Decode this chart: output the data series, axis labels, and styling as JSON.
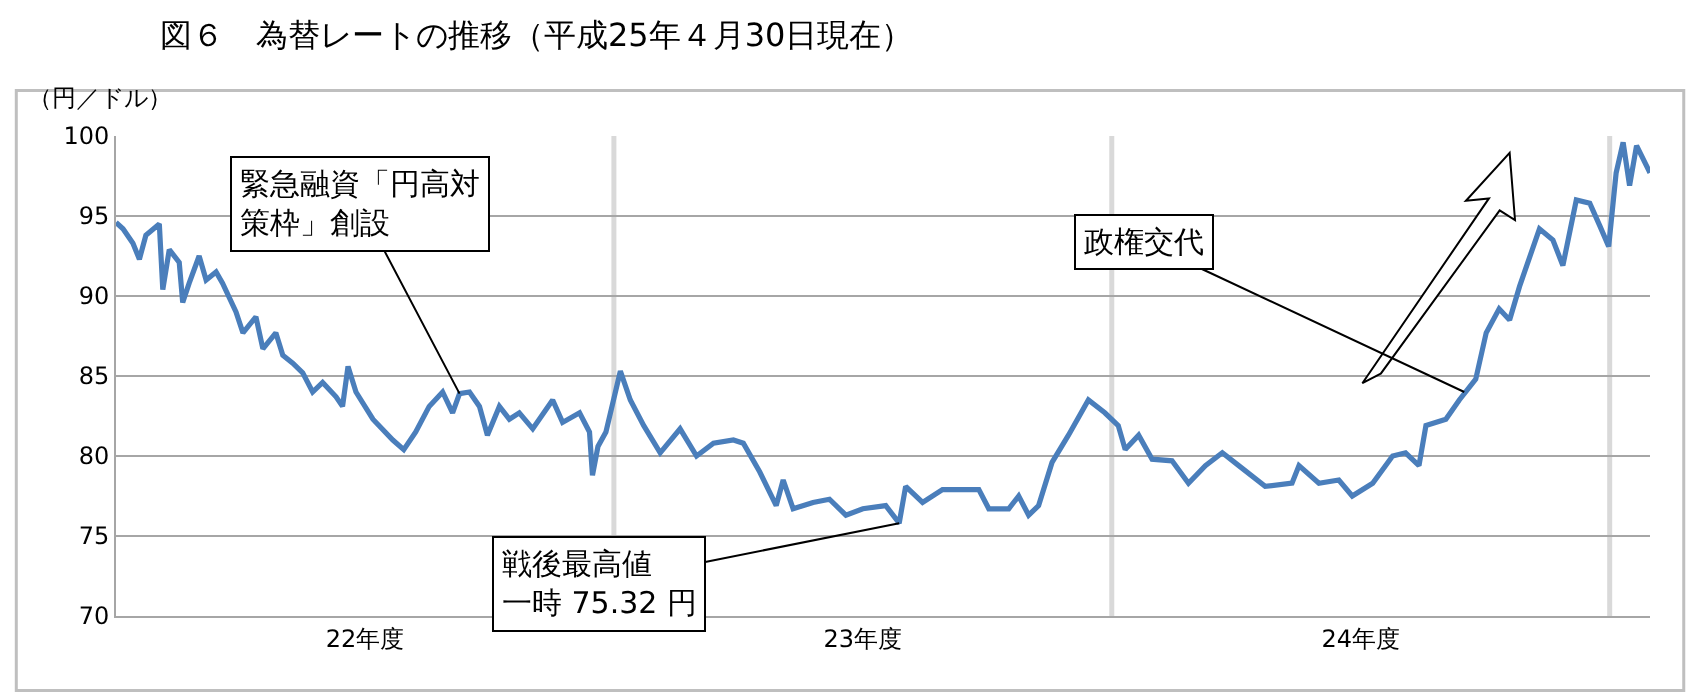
{
  "chart_data": {
    "type": "line",
    "title": "図６　為替レートの推移（平成25年４月30日現在）",
    "ylabel": "（円／ドル）",
    "x": [
      22.0,
      22.014,
      22.034,
      22.047,
      22.06,
      22.087,
      22.094,
      22.107,
      22.127,
      22.134,
      22.147,
      22.167,
      22.181,
      22.201,
      22.214,
      22.241,
      22.255,
      22.281,
      22.295,
      22.321,
      22.335,
      22.355,
      22.375,
      22.395,
      22.415,
      22.442,
      22.455,
      22.466,
      22.482,
      22.516,
      22.556,
      22.578,
      22.602,
      22.629,
      22.656,
      22.676,
      22.69,
      22.71,
      22.73,
      22.746,
      22.77,
      22.79,
      22.81,
      22.837,
      22.877,
      22.897,
      22.931,
      22.951,
      22.957,
      22.968,
      22.984,
      23.013,
      23.033,
      23.06,
      23.093,
      23.133,
      23.166,
      23.2,
      23.24,
      23.26,
      23.293,
      23.326,
      23.34,
      23.36,
      23.4,
      23.433,
      23.466,
      23.5,
      23.546,
      23.573,
      23.586,
      23.62,
      23.66,
      23.7,
      23.733,
      23.753,
      23.793,
      23.813,
      23.833,
      23.853,
      23.88,
      23.913,
      23.953,
      23.986,
      24.013,
      24.027,
      24.054,
      24.081,
      24.121,
      24.154,
      24.188,
      24.222,
      24.255,
      24.308,
      24.362,
      24.376,
      24.416,
      24.456,
      24.483,
      24.524,
      24.564,
      24.59,
      24.617,
      24.631,
      24.671,
      24.698,
      24.731,
      24.752,
      24.778,
      24.799,
      24.819,
      24.859,
      24.886,
      24.906,
      24.933,
      24.96,
      24.98,
      24.998,
      25.013,
      25.027,
      25.04,
      25.054,
      25.081
    ],
    "values": [
      94.6,
      94.2,
      93.3,
      92.3,
      93.8,
      94.5,
      90.4,
      92.9,
      92.1,
      89.6,
      90.8,
      92.5,
      91.0,
      91.5,
      90.8,
      89.0,
      87.7,
      88.7,
      86.7,
      87.7,
      86.3,
      85.8,
      85.2,
      84.0,
      84.6,
      83.7,
      83.1,
      85.6,
      84.0,
      82.3,
      81.0,
      80.4,
      81.5,
      83.1,
      84.0,
      82.7,
      83.9,
      84.0,
      83.1,
      81.3,
      83.1,
      82.3,
      82.7,
      81.7,
      83.5,
      82.1,
      82.7,
      81.5,
      78.8,
      80.6,
      81.5,
      85.3,
      83.5,
      81.9,
      80.2,
      81.7,
      80.0,
      80.8,
      81.0,
      80.8,
      79.0,
      76.9,
      78.5,
      76.7,
      77.1,
      77.3,
      76.3,
      76.7,
      76.9,
      75.8,
      78.1,
      77.1,
      77.9,
      77.9,
      77.9,
      76.7,
      76.7,
      77.5,
      76.3,
      76.9,
      79.6,
      81.3,
      83.5,
      82.7,
      81.9,
      80.4,
      81.3,
      79.8,
      79.7,
      78.3,
      79.4,
      80.2,
      79.4,
      78.1,
      78.3,
      79.4,
      78.3,
      78.5,
      77.5,
      78.3,
      80.0,
      80.2,
      79.4,
      81.9,
      82.3,
      83.5,
      84.8,
      87.7,
      89.2,
      88.5,
      90.6,
      94.2,
      93.5,
      91.9,
      96.0,
      95.8,
      94.4,
      93.1,
      97.7,
      99.6,
      96.9,
      99.4,
      97.7
    ],
    "color": "#4a7ebb",
    "xlim": [
      22,
      25.081
    ],
    "xticks": [
      {
        "value": 22.5,
        "label": "22年度"
      },
      {
        "value": 23.5,
        "label": "23年度"
      },
      {
        "value": 24.5,
        "label": "24年度"
      }
    ],
    "ylim": [
      70,
      100
    ],
    "yticks": [
      70,
      75,
      80,
      85,
      90,
      95,
      100
    ],
    "grid": "y",
    "marker": "none",
    "line_style": "solid",
    "ref_lines": [
      {
        "axis": "x",
        "value": 23,
        "color": "#d9d9d9"
      },
      {
        "axis": "x",
        "value": 24,
        "color": "#d9d9d9"
      },
      {
        "axis": "x",
        "value": 25,
        "color": "#d9d9d9"
      }
    ],
    "annotations": [
      {
        "text": "緊急融資「円高対策枠」創設",
        "x": 22.69,
        "y": 83.9
      },
      {
        "text": "戦後最高値一時 75.32 円",
        "x": 23.573,
        "y": 75.8
      },
      {
        "text": "政権交代",
        "x": 24.708,
        "y": 84.0
      }
    ]
  }
}
